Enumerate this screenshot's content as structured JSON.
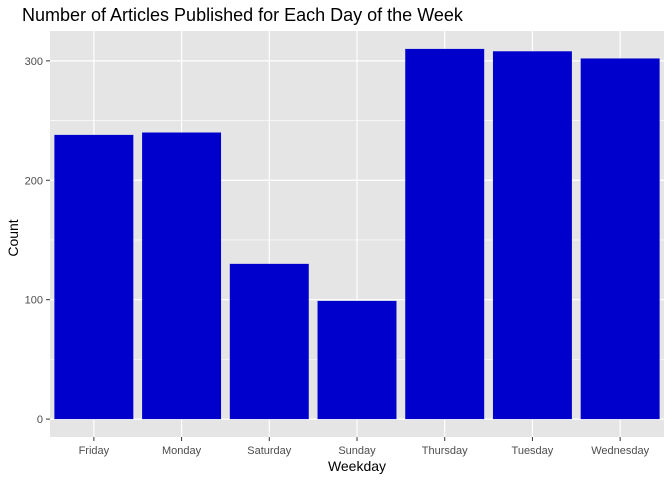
{
  "chart_data": {
    "type": "bar",
    "title": "Number of Articles Published for Each Day of the Week",
    "xlabel": "Weekday",
    "ylabel": "Count",
    "categories": [
      "Friday",
      "Monday",
      "Saturday",
      "Sunday",
      "Thursday",
      "Tuesday",
      "Wednesday"
    ],
    "values": [
      238,
      240,
      130,
      99,
      310,
      308,
      302
    ],
    "ylim": [
      -15,
      325
    ],
    "yticks": [
      0,
      100,
      200,
      300
    ],
    "grid": true,
    "legend": "none",
    "bar_color": "#0000CD",
    "panel_background": "#E5E5E5",
    "grid_color": "#FFFFFF"
  }
}
